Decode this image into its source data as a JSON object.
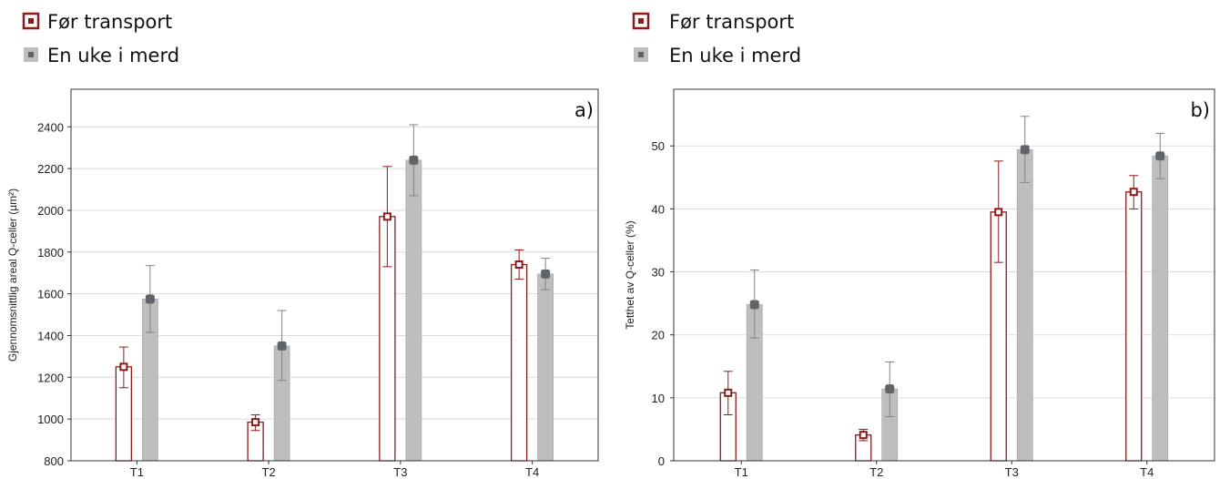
{
  "colors": {
    "before": "#8b1a1a",
    "after_fill": "#bdbfbd",
    "after_marker": "#606367",
    "error_after": "#808080",
    "grid": "#dcdcdc",
    "axis": "#333333"
  },
  "chart_data": [
    {
      "type": "bar",
      "panel_label": "a)",
      "ylabel": "Gjennomsnittlig areal Q-celler (µm²)",
      "xlabel": "",
      "categories": [
        "T1",
        "T2",
        "T3",
        "T4"
      ],
      "ylim": [
        800,
        2580
      ],
      "yticks": [
        800,
        1000,
        1200,
        1400,
        1600,
        1800,
        2000,
        2200,
        2400
      ],
      "grid": true,
      "legend_position": "top-left",
      "series": [
        {
          "name": "Før transport",
          "style": "outline",
          "values": [
            1250,
            985,
            1970,
            1740
          ],
          "error_low": [
            1150,
            945,
            1730,
            1670
          ],
          "error_high": [
            1345,
            1020,
            2210,
            1810
          ]
        },
        {
          "name": "En uke i merd",
          "style": "filled",
          "values": [
            1575,
            1350,
            2240,
            1695
          ],
          "error_low": [
            1415,
            1185,
            2070,
            1620
          ],
          "error_high": [
            1735,
            1520,
            2410,
            1770
          ]
        }
      ]
    },
    {
      "type": "bar",
      "panel_label": "b)",
      "ylabel": "Tetthet av Q-celler (%)",
      "xlabel": "",
      "categories": [
        "T1",
        "T2",
        "T3",
        "T4"
      ],
      "ylim": [
        0,
        59
      ],
      "yticks": [
        0,
        10,
        20,
        30,
        40,
        50
      ],
      "grid": true,
      "legend_position": "top-left",
      "series": [
        {
          "name": "Før transport",
          "style": "outline",
          "values": [
            10.8,
            4.1,
            39.5,
            42.7
          ],
          "error_low": [
            7.3,
            3.2,
            31.5,
            40.0
          ],
          "error_high": [
            14.2,
            5.0,
            47.6,
            45.3
          ]
        },
        {
          "name": "En uke i merd",
          "style": "filled",
          "values": [
            24.8,
            11.4,
            49.4,
            48.4
          ],
          "error_low": [
            19.5,
            7.0,
            44.2,
            44.8
          ],
          "error_high": [
            30.3,
            15.7,
            54.7,
            52.0
          ]
        }
      ]
    }
  ]
}
